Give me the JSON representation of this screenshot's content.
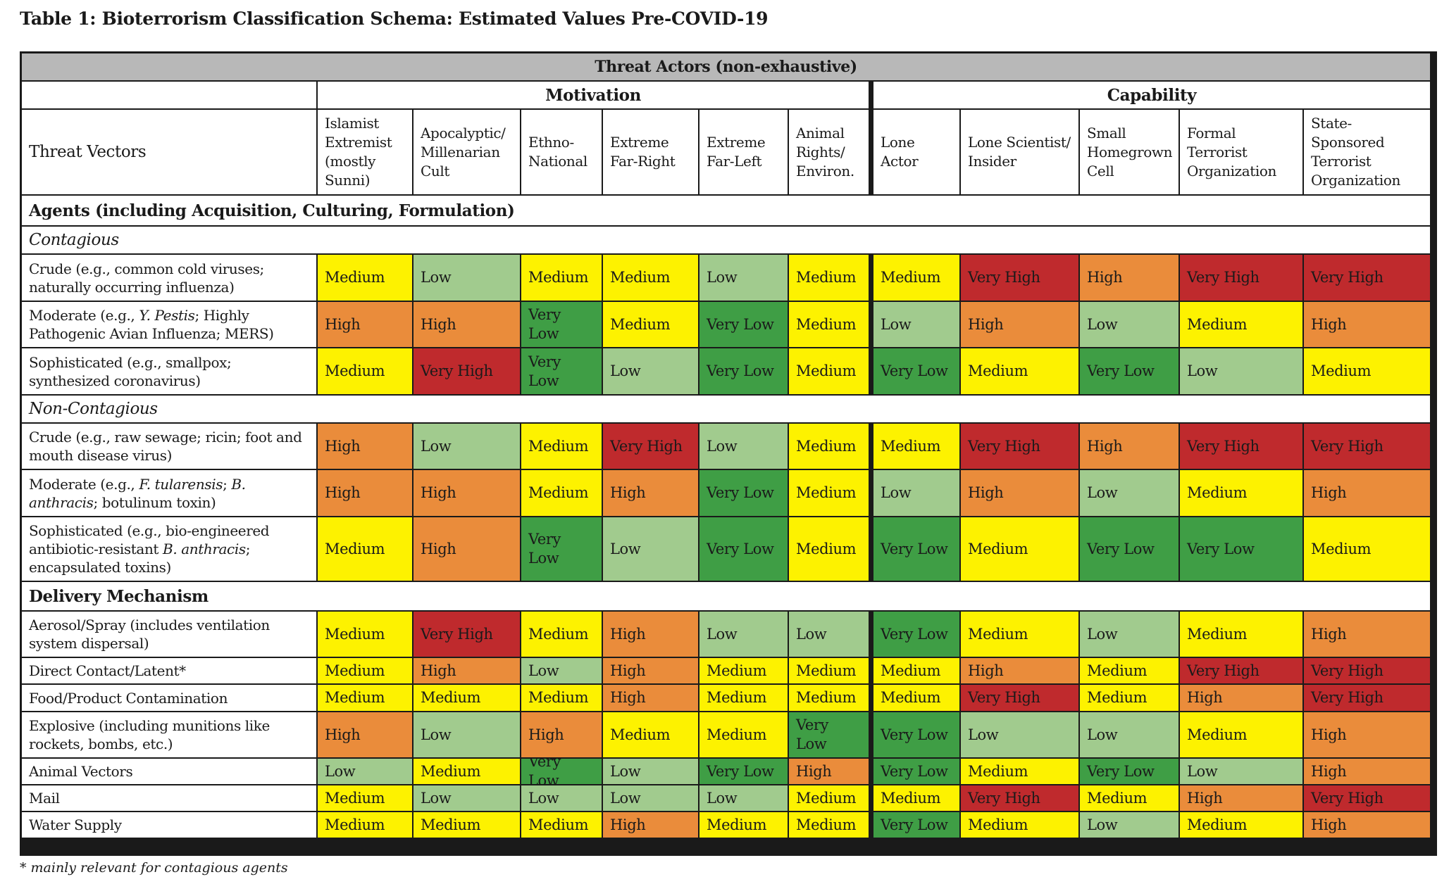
{
  "title": "Table 1: Bioterrorism Classification Schema: Estimated Values Pre-COVID-19",
  "header": {
    "threat_actors": "Threat Actors (non-exhaustive)",
    "motivation": "Motivation",
    "capability": "Capability",
    "threat_vectors": "Threat Vectors",
    "columns": [
      "Islamist Extremist (mostly Sunni)",
      "Apocalyptic/ Millenarian Cult",
      "Ethno-National",
      "Extreme Far-Right",
      "Extreme Far-Left",
      "Animal Rights/ Environ.",
      "Lone Actor",
      "Lone Scientist/ Insider",
      "Small Homegrown Cell",
      "Formal Terrorist Organization",
      "State-Sponsored Terrorist Organization"
    ]
  },
  "sections": {
    "agents": "Agents (including Acquisition, Culturing, Formulation)",
    "contagious": "Contagious",
    "non_contagious": "Non-Contagious",
    "delivery": "Delivery Mechanism"
  },
  "colors": {
    "Very Low": "#3f9e45",
    "Low": "#a1cb8e",
    "Medium": "#fdf200",
    "High": "#ea8c3b",
    "Very High": "#bf2a2d"
  },
  "rows": [
    {
      "id": "c-crude",
      "label": "Crude (e.g., common cold viruses; naturally occurring influenza)",
      "values": [
        "Medium",
        "Low",
        "Medium",
        "Medium",
        "Low",
        "Medium",
        "Medium",
        "Very High",
        "High",
        "Very High",
        "Very High"
      ]
    },
    {
      "id": "c-moderate",
      "label_parts": [
        "Moderate (e.g., ",
        "Y. Pestis",
        "; Highly Pathogenic Avian Influenza; MERS)"
      ],
      "values": [
        "High",
        "High",
        "Very Low",
        "Medium",
        "Very Low",
        "Medium",
        "Low",
        "High",
        "Low",
        "Medium",
        "High"
      ]
    },
    {
      "id": "c-soph",
      "label": "Sophisticated (e.g., smallpox; synthesized coronavirus)",
      "values": [
        "Medium",
        "Very High",
        "Very Low",
        "Low",
        "Very Low",
        "Medium",
        "Very Low",
        "Medium",
        "Very Low",
        "Low",
        "Medium"
      ]
    },
    {
      "id": "n-crude",
      "label": "Crude (e.g., raw sewage; ricin; foot and mouth disease virus)",
      "values": [
        "High",
        "Low",
        "Medium",
        "Very High",
        "Low",
        "Medium",
        "Medium",
        "Very High",
        "High",
        "Very High",
        "Very High"
      ]
    },
    {
      "id": "n-moderate",
      "label_parts": [
        "Moderate (e.g., ",
        "F. tularensis",
        "; ",
        "B. anthracis",
        "; botulinum toxin)"
      ],
      "values": [
        "High",
        "High",
        "Medium",
        "High",
        "Very Low",
        "Medium",
        "Low",
        "High",
        "Low",
        "Medium",
        "High"
      ]
    },
    {
      "id": "n-soph",
      "label_parts": [
        "Sophisticated (e.g., bio-engineered antibiotic-resistant ",
        "B. anthracis",
        "; encapsulated toxins)"
      ],
      "values": [
        "Medium",
        "High",
        "Very Low",
        "Low",
        "Very Low",
        "Medium",
        "Very Low",
        "Medium",
        "Very Low",
        "Very Low",
        "Medium"
      ]
    },
    {
      "id": "d-aerosol",
      "label": "Aerosol/Spray (includes ventilation system dispersal)",
      "values": [
        "Medium",
        "Very High",
        "Medium",
        "High",
        "Low",
        "Low",
        "Very Low",
        "Medium",
        "Low",
        "Medium",
        "High"
      ]
    },
    {
      "id": "d-contact",
      "label": "Direct Contact/Latent*",
      "values": [
        "Medium",
        "High",
        "Low",
        "High",
        "Medium",
        "Medium",
        "Medium",
        "High",
        "Medium",
        "Very High",
        "Very High"
      ]
    },
    {
      "id": "d-food",
      "label": "Food/Product Contamination",
      "values": [
        "Medium",
        "Medium",
        "Medium",
        "High",
        "Medium",
        "Medium",
        "Medium",
        "Very High",
        "Medium",
        "High",
        "Very High"
      ]
    },
    {
      "id": "d-explosive",
      "label": "Explosive (including munitions like rockets, bombs, etc.)",
      "values": [
        "High",
        "Low",
        "High",
        "Medium",
        "Medium",
        "Very Low",
        "Very Low",
        "Low",
        "Low",
        "Medium",
        "High"
      ]
    },
    {
      "id": "d-animal",
      "label": "Animal Vectors",
      "values": [
        "Low",
        "Medium",
        "Very Low",
        "Low",
        "Very Low",
        "High",
        "Very Low",
        "Medium",
        "Very Low",
        "Low",
        "High"
      ]
    },
    {
      "id": "d-mail",
      "label": "Mail",
      "values": [
        "Medium",
        "Low",
        "Low",
        "Low",
        "Low",
        "Medium",
        "Medium",
        "Very High",
        "Medium",
        "High",
        "Very High"
      ]
    },
    {
      "id": "d-water",
      "label": "Water Supply",
      "values": [
        "Medium",
        "Medium",
        "Medium",
        "High",
        "Medium",
        "Medium",
        "Very Low",
        "Medium",
        "Low",
        "Medium",
        "High"
      ]
    }
  ],
  "footnote": "* mainly relevant for contagious agents"
}
